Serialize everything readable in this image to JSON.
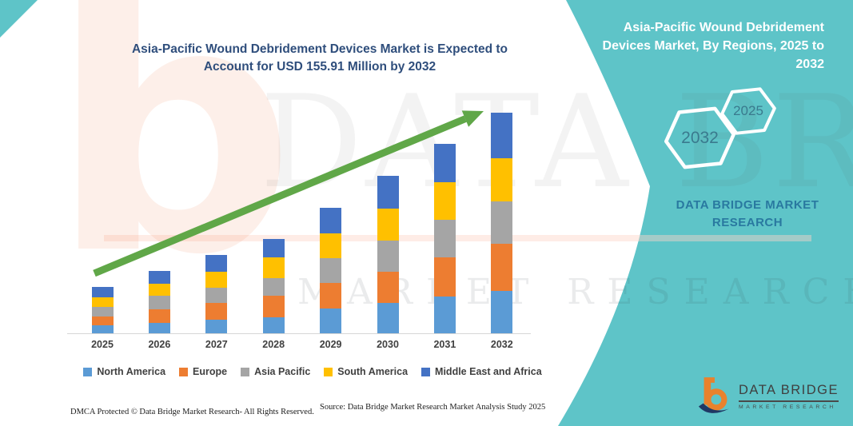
{
  "page": {
    "accent_teal": "#5EC4C8",
    "background": "#FFFFFF"
  },
  "chart": {
    "title": "Asia-Pacific Wound Debridement Devices Market is Expected to Account for USD 155.91 Million by 2032"
  },
  "chart_data": {
    "type": "bar",
    "stacked": true,
    "unit": "USD Million",
    "title": "Asia-Pacific Wound Debridement Devices Market is Expected to Account for USD 155.91 Million by 2032",
    "categories": [
      "2025",
      "2026",
      "2027",
      "2028",
      "2029",
      "2030",
      "2031",
      "2032"
    ],
    "series": [
      {
        "name": "North America",
        "color": "#5B9BD5",
        "values": [
          5.7,
          7.2,
          9.4,
          11.3,
          17.3,
          21.7,
          26.0,
          30.2
        ]
      },
      {
        "name": "Europe",
        "color": "#ED7D31",
        "values": [
          6.2,
          9.8,
          11.9,
          15.1,
          18.1,
          21.6,
          27.7,
          32.9
        ]
      },
      {
        "name": "Asia Pacific",
        "color": "#A5A5A5",
        "values": [
          6.6,
          9.4,
          10.7,
          12.8,
          17.9,
          22.2,
          26.4,
          30.11
        ]
      },
      {
        "name": "South America",
        "color": "#FFC000",
        "values": [
          6.8,
          8.6,
          11.3,
          14.7,
          17.3,
          22.6,
          26.7,
          30.5
        ]
      },
      {
        "name": "Middle East and Africa",
        "color": "#4472C4",
        "values": [
          7.7,
          8.9,
          11.9,
          12.7,
          17.9,
          23.4,
          27.0,
          32.2
        ]
      }
    ],
    "totals_estimated": [
      33.0,
      43.9,
      55.2,
      66.6,
      88.5,
      111.5,
      133.8,
      155.91
    ],
    "highlight_value": "USD 155.91 Million by 2032",
    "ylim": [
      0,
      160
    ],
    "grid": false,
    "legend_position": "bottom",
    "trend_arrow": {
      "color": "#60A748",
      "direction": "up-right"
    }
  },
  "right_panel": {
    "title": "Asia-Pacific Wound Debridement Devices Market, By Regions, 2025 to 2032",
    "hexagons": [
      {
        "label": "2032"
      },
      {
        "label": "2025"
      }
    ],
    "brand_text": "DATA BRIDGE MARKET RESEARCH"
  },
  "brand_logo": {
    "title": "DATA BRIDGE",
    "subtitle": "MARKET RESEARCH"
  },
  "footer": {
    "dmca": "DMCA Protected © Data Bridge Market Research-  All Rights Reserved.",
    "source": "Source: Data Bridge Market Research  Market Analysis Study 2025"
  },
  "watermark": {
    "letter": "b",
    "brand": "DATA BRIDGE",
    "caps": "MARKET RESEARCH"
  }
}
